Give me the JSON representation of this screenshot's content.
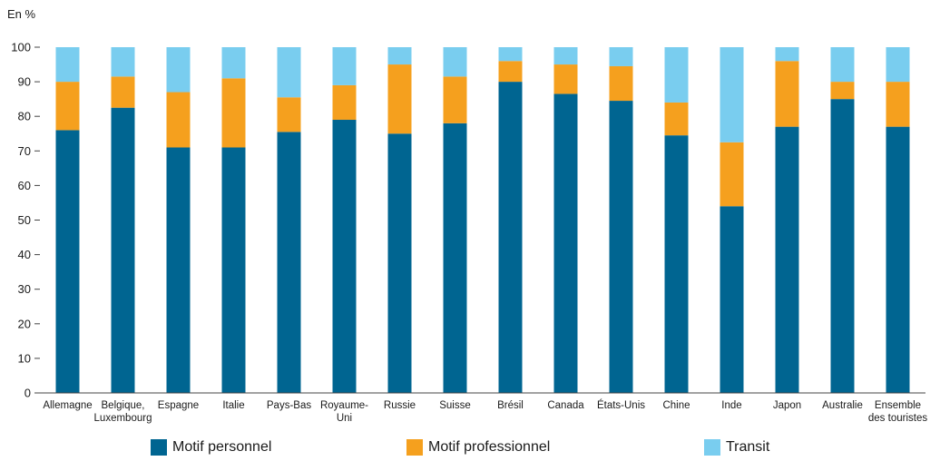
{
  "chart_data": {
    "type": "bar",
    "stacked": true,
    "ylabel": "En %",
    "ylim": [
      0,
      100
    ],
    "yticks": [
      0,
      10,
      20,
      30,
      40,
      50,
      60,
      70,
      80,
      90,
      100
    ],
    "grid": false,
    "legend_position": "bottom",
    "categories": [
      [
        "Allemagne"
      ],
      [
        "Belgique,",
        "Luxembourg"
      ],
      [
        "Espagne"
      ],
      [
        "Italie"
      ],
      [
        "Pays-Bas"
      ],
      [
        "Royaume-",
        "Uni"
      ],
      [
        "Russie"
      ],
      [
        "Suisse"
      ],
      [
        "Brésil"
      ],
      [
        "Canada"
      ],
      [
        "États-Unis"
      ],
      [
        "Chine"
      ],
      [
        "Inde"
      ],
      [
        "Japon"
      ],
      [
        "Australie"
      ],
      [
        "Ensemble",
        "des touristes"
      ]
    ],
    "series": [
      {
        "name": "Motif personnel",
        "color": "#006591",
        "values": [
          76,
          82.5,
          71,
          71,
          75.5,
          79,
          75,
          78,
          90,
          86.5,
          84.5,
          74.5,
          54,
          77,
          85,
          77
        ]
      },
      {
        "name": "Motif professionnel",
        "color": "#F5A01E",
        "values": [
          14,
          9,
          16,
          20,
          10,
          10,
          20,
          13.5,
          6,
          8.5,
          10,
          9.5,
          18.5,
          19,
          5,
          13
        ]
      },
      {
        "name": "Transit",
        "color": "#79CDEF",
        "values": [
          10,
          8.5,
          13,
          9,
          14.5,
          11,
          5,
          8.5,
          4,
          5,
          5.5,
          16,
          27.5,
          4,
          10,
          10
        ]
      }
    ]
  }
}
